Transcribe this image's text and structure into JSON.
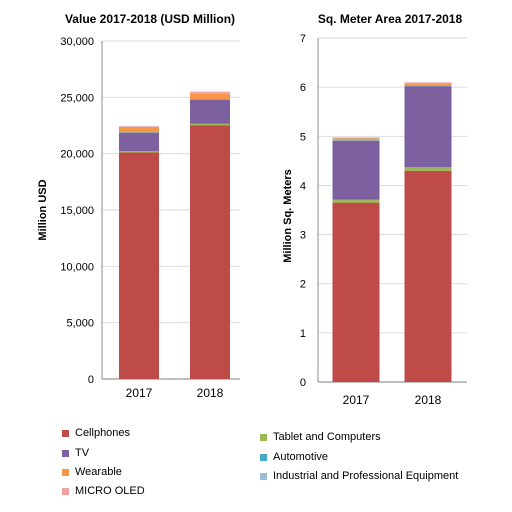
{
  "chart_data": [
    {
      "type": "bar",
      "stacked": true,
      "title": "Value 2017-2018 (USD Million)",
      "ylabel": "Million USD",
      "xlabel": "",
      "categories": [
        "2017",
        "2018"
      ],
      "ylim": [
        0,
        30000
      ],
      "yticks": [
        0,
        5000,
        10000,
        15000,
        20000,
        25000,
        30000
      ],
      "ytick_labels": [
        "0",
        "5,000",
        "10,000",
        "15,000",
        "20,000",
        "25,000",
        "30,000"
      ],
      "grid": true,
      "series": [
        {
          "name": "Cellphones",
          "values": [
            20100,
            22500
          ]
        },
        {
          "name": "Tablet and Computers",
          "values": [
            120,
            150
          ]
        },
        {
          "name": "TV",
          "values": [
            1650,
            2150
          ]
        },
        {
          "name": "Automotive",
          "values": [
            20,
            30
          ]
        },
        {
          "name": "Wearable",
          "values": [
            480,
            500
          ]
        },
        {
          "name": "Industrial and Professional Equipment",
          "values": [
            20,
            30
          ]
        },
        {
          "name": "MICRO OLED",
          "values": [
            50,
            140
          ]
        }
      ]
    },
    {
      "type": "bar",
      "stacked": true,
      "title": "Sq. Meter Area 2017-2018",
      "ylabel": "Million Sq. Meters",
      "xlabel": "",
      "categories": [
        "2017",
        "2018"
      ],
      "ylim": [
        0,
        7
      ],
      "yticks": [
        0,
        1,
        2,
        3,
        4,
        5,
        6,
        7
      ],
      "ytick_labels": [
        "0",
        "1",
        "2",
        "3",
        "4",
        "5",
        "6",
        "7"
      ],
      "grid": true,
      "series": [
        {
          "name": "Cellphones",
          "values": [
            3.65,
            4.3
          ]
        },
        {
          "name": "Tablet and Computers",
          "values": [
            0.06,
            0.07
          ]
        },
        {
          "name": "TV",
          "values": [
            1.2,
            1.65
          ]
        },
        {
          "name": "Automotive",
          "values": [
            0.01,
            0.01
          ]
        },
        {
          "name": "Wearable",
          "values": [
            0.04,
            0.05
          ]
        },
        {
          "name": "Industrial and Professional Equipment",
          "values": [
            0.01,
            0.01
          ]
        },
        {
          "name": "MICRO OLED",
          "values": [
            0.01,
            0.01
          ]
        }
      ]
    }
  ],
  "colors": {
    "Cellphones": "#BE4B48",
    "Tablet and Computers": "#98B954",
    "TV": "#7D60A0",
    "Automotive": "#46AAC5",
    "Wearable": "#F79646",
    "Industrial and Professional Equipment": "#9BBBD9",
    "MICRO OLED": "#F2A09E",
    "grid": "#D9D9D9",
    "axis": "#7F7F7F"
  },
  "legend": [
    {
      "label": "Cellphones"
    },
    {
      "label": "TV"
    },
    {
      "label": "Wearable"
    },
    {
      "label": "MICRO OLED"
    },
    {
      "label": "Tablet and Computers"
    },
    {
      "label": "Automotive"
    },
    {
      "label": "Industrial and Professional Equipment"
    }
  ]
}
